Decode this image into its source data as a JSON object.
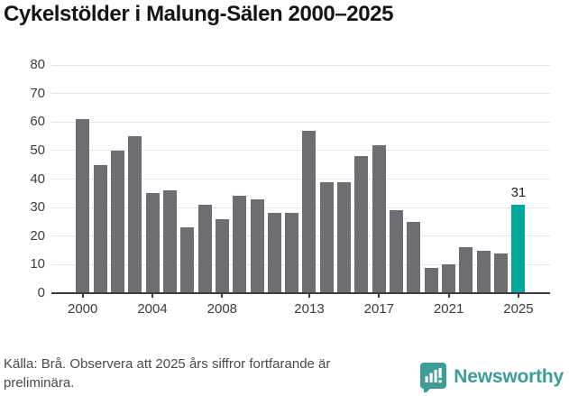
{
  "title": "Cykelstölder i Malung-Sälen 2000–2025",
  "footer": {
    "source": "Källa: Brå. Observera att 2025 års siffror fortfarande är preliminära.",
    "brand": "Newsworthy",
    "brand_icon": "bar-chart-speech-bubble-icon"
  },
  "colors": {
    "bar": "#6d6d72",
    "highlight": "#00a79c",
    "grid": "#e6e6e6",
    "axis": "#3d3d3d",
    "title": "#151515",
    "muted_text": "#4a4a4a",
    "brand": "#3e9c98"
  },
  "chart_data": {
    "type": "bar",
    "title": "Cykelstölder i Malung-Sälen 2000–2025",
    "categories": [
      2000,
      2001,
      2002,
      2003,
      2004,
      2005,
      2006,
      2007,
      2008,
      2009,
      2010,
      2011,
      2012,
      2013,
      2014,
      2015,
      2016,
      2017,
      2018,
      2019,
      2020,
      2021,
      2022,
      2023,
      2024,
      2025
    ],
    "values": [
      61,
      45,
      50,
      55,
      35,
      36,
      23,
      31,
      26,
      34,
      33,
      28,
      28,
      57,
      39,
      39,
      48,
      52,
      29,
      25,
      9,
      10,
      16,
      15,
      14,
      31
    ],
    "bar_color": "#6d6d72",
    "highlight": {
      "index": 25,
      "color": "#00a79c",
      "label": "31"
    },
    "ylim": [
      0,
      80
    ],
    "y_ticks": [
      0,
      10,
      20,
      30,
      40,
      50,
      60,
      70,
      80
    ],
    "x_ticks": [
      2000,
      2004,
      2008,
      2013,
      2017,
      2021,
      2025
    ],
    "grid": "horizontal",
    "legend": "none"
  }
}
